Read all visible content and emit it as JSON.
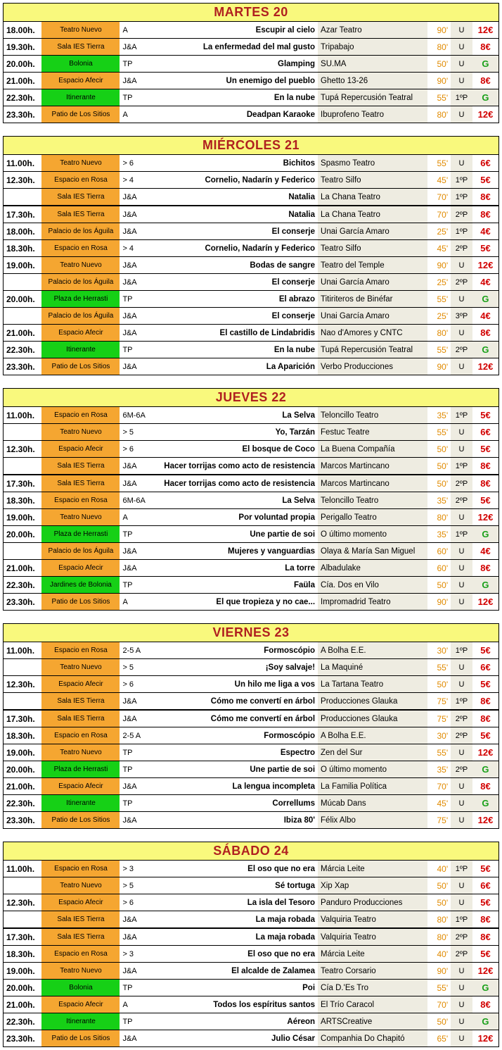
{
  "days": [
    {
      "title": "MARTES 20",
      "groups": [
        [
          {
            "time": "18.00h.",
            "venue": "Teatro Nuevo",
            "vcolor": "orange",
            "age": "A",
            "show": "Escupir al cielo",
            "company": "Azar Teatro",
            "dur": "90'",
            "sess": "U",
            "price": "12€",
            "pcolor": "red"
          },
          {
            "time": "19.30h.",
            "venue": "Sala IES Tierra",
            "vcolor": "orange",
            "age": "J&A",
            "show": "La enfermedad del mal gusto",
            "company": "Tripabajo",
            "dur": "80'",
            "sess": "U",
            "price": "8€",
            "pcolor": "red"
          },
          {
            "time": "20.00h.",
            "venue": "Bolonia",
            "vcolor": "green",
            "age": "TP",
            "show": "Glamping",
            "company": "SU.MA",
            "dur": "50'",
            "sess": "U",
            "price": "G",
            "pcolor": "green"
          },
          {
            "time": "21.00h.",
            "venue": "Espacio Afecir",
            "vcolor": "orange",
            "age": "J&A",
            "show": "Un enemigo del pueblo",
            "company": "Ghetto 13-26",
            "dur": "90'",
            "sess": "U",
            "price": "8€",
            "pcolor": "red"
          },
          {
            "time": "22.30h.",
            "venue": "Itinerante",
            "vcolor": "green",
            "age": "TP",
            "show": "En la nube",
            "company": "Tupá Repercusión Teatral",
            "dur": "55'",
            "sess": "1ºP",
            "price": "G",
            "pcolor": "green"
          },
          {
            "time": "23.30h.",
            "venue": "Patio de Los Sitios",
            "vcolor": "orange",
            "age": "A",
            "show": "Deadpan Karaoke",
            "company": "Ibuprofeno Teatro",
            "dur": "80'",
            "sess": "U",
            "price": "12€",
            "pcolor": "red"
          }
        ]
      ]
    },
    {
      "title": "MIÉRCOLES 21",
      "groups": [
        [
          {
            "time": "11.00h.",
            "venue": "Teatro Nuevo",
            "vcolor": "orange",
            "age": "> 6",
            "show": "Bichitos",
            "company": "Spasmo Teatro",
            "dur": "55'",
            "sess": "U",
            "price": "6€",
            "pcolor": "red"
          },
          {
            "time": "12.30h.",
            "venue": "Espacio en Rosa",
            "vcolor": "orange",
            "age": "> 4",
            "show": "Cornelio, Nadarín y Federico",
            "company": "Teatro Silfo",
            "dur": "45'",
            "sess": "1ºP",
            "price": "5€",
            "pcolor": "red"
          },
          {
            "time": "",
            "venue": "Sala IES Tierra",
            "vcolor": "orange",
            "age": "J&A",
            "show": "Natalia",
            "company": "La Chana Teatro",
            "dur": "70'",
            "sess": "1ºP",
            "price": "8€",
            "pcolor": "red"
          }
        ],
        [
          {
            "time": "17.30h.",
            "venue": "Sala IES Tierra",
            "vcolor": "orange",
            "age": "J&A",
            "show": "Natalia",
            "company": "La Chana Teatro",
            "dur": "70'",
            "sess": "2ºP",
            "price": "8€",
            "pcolor": "red"
          },
          {
            "time": "18.00h.",
            "venue": "Palacio de los Águila",
            "vcolor": "orange",
            "age": "J&A",
            "show": "El conserje",
            "company": "Unai García Amaro",
            "dur": "25'",
            "sess": "1ºP",
            "price": "4€",
            "pcolor": "red"
          },
          {
            "time": "18.30h.",
            "venue": "Espacio en Rosa",
            "vcolor": "orange",
            "age": "> 4",
            "show": "Cornelio, Nadarín y Federico",
            "company": "Teatro Silfo",
            "dur": "45'",
            "sess": "2ºP",
            "price": "5€",
            "pcolor": "red"
          },
          {
            "time": "19.00h.",
            "venue": "Teatro Nuevo",
            "vcolor": "orange",
            "age": "J&A",
            "show": "Bodas de sangre",
            "company": "Teatro del Temple",
            "dur": "90'",
            "sess": "U",
            "price": "12€",
            "pcolor": "red"
          },
          {
            "time": "",
            "venue": "Palacio de los Águila",
            "vcolor": "orange",
            "age": "J&A",
            "show": "El conserje",
            "company": "Unai García Amaro",
            "dur": "25'",
            "sess": "2ºP",
            "price": "4€",
            "pcolor": "red"
          },
          {
            "time": "20.00h.",
            "venue": "Plaza de Herrasti",
            "vcolor": "green",
            "age": "TP",
            "show": "El abrazo",
            "company": "Titiriteros de Binéfar",
            "dur": "55'",
            "sess": "U",
            "price": "G",
            "pcolor": "green"
          },
          {
            "time": "",
            "venue": "Palacio de los Águila",
            "vcolor": "orange",
            "age": "J&A",
            "show": "El conserje",
            "company": "Unai García Amaro",
            "dur": "25'",
            "sess": "3ºP",
            "price": "4€",
            "pcolor": "red"
          },
          {
            "time": "21.00h.",
            "venue": "Espacio Afecir",
            "vcolor": "orange",
            "age": "J&A",
            "show": "El castillo de Lindabridis",
            "company": "Nao d'Amores y CNTC",
            "dur": "80'",
            "sess": "U",
            "price": "8€",
            "pcolor": "red"
          },
          {
            "time": "22.30h.",
            "venue": "Itinerante",
            "vcolor": "green",
            "age": "TP",
            "show": "En la nube",
            "company": "Tupá Repercusión Teatral",
            "dur": "55'",
            "sess": "2ºP",
            "price": "G",
            "pcolor": "green"
          },
          {
            "time": "23.30h.",
            "venue": "Patio de Los Sitios",
            "vcolor": "orange",
            "age": "J&A",
            "show": "La Aparición",
            "company": "Verbo Producciones",
            "dur": "90'",
            "sess": "U",
            "price": "12€",
            "pcolor": "red"
          }
        ]
      ]
    },
    {
      "title": "JUEVES 22",
      "groups": [
        [
          {
            "time": "11.00h.",
            "venue": "Espacio en Rosa",
            "vcolor": "orange",
            "age": "6M-6A",
            "show": "La Selva",
            "company": "Teloncillo Teatro",
            "dur": "35'",
            "sess": "1ºP",
            "price": "5€",
            "pcolor": "red"
          },
          {
            "time": "",
            "venue": "Teatro Nuevo",
            "vcolor": "orange",
            "age": "> 5",
            "show": "Yo, Tarzán",
            "company": "Festuc Teatre",
            "dur": "55'",
            "sess": "U",
            "price": "6€",
            "pcolor": "red"
          },
          {
            "time": "12.30h.",
            "venue": "Espacio Afecir",
            "vcolor": "orange",
            "age": "> 6",
            "show": "El bosque de Coco",
            "company": "La Buena Compañía",
            "dur": "50'",
            "sess": "U",
            "price": "5€",
            "pcolor": "red"
          },
          {
            "time": "",
            "venue": "Sala IES Tierra",
            "vcolor": "orange",
            "age": "J&A",
            "show": "Hacer torrijas como acto de resistencia",
            "company": "Marcos Martincano",
            "dur": "50'",
            "sess": "1ºP",
            "price": "8€",
            "pcolor": "red"
          }
        ],
        [
          {
            "time": "17.30h.",
            "venue": "Sala IES Tierra",
            "vcolor": "orange",
            "age": "J&A",
            "show": "Hacer torrijas como acto de resistencia",
            "company": "Marcos Martincano",
            "dur": "50'",
            "sess": "2ºP",
            "price": "8€",
            "pcolor": "red"
          },
          {
            "time": "18.30h.",
            "venue": "Espacio en Rosa",
            "vcolor": "orange",
            "age": "6M-6A",
            "show": "La Selva",
            "company": "Teloncillo Teatro",
            "dur": "35'",
            "sess": "2ºP",
            "price": "5€",
            "pcolor": "red"
          },
          {
            "time": "19.00h.",
            "venue": "Teatro Nuevo",
            "vcolor": "orange",
            "age": "A",
            "show": "Por voluntad propia",
            "company": "Perigallo Teatro",
            "dur": "80'",
            "sess": "U",
            "price": "12€",
            "pcolor": "red"
          },
          {
            "time": "20.00h.",
            "venue": "Plaza de Herrasti",
            "vcolor": "green",
            "age": "TP",
            "show": "Une partie de soi",
            "company": "O último momento",
            "dur": "35'",
            "sess": "1ºP",
            "price": "G",
            "pcolor": "green"
          },
          {
            "time": "",
            "venue": "Palacio de los Águila",
            "vcolor": "orange",
            "age": "J&A",
            "show": "Mujeres y vanguardias",
            "company": "Olaya & María San Miguel",
            "dur": "60'",
            "sess": "U",
            "price": "4€",
            "pcolor": "red"
          },
          {
            "time": "21.00h.",
            "venue": "Espacio Afecir",
            "vcolor": "orange",
            "age": "J&A",
            "show": "La torre",
            "company": "Albadulake",
            "dur": "60'",
            "sess": "U",
            "price": "8€",
            "pcolor": "red"
          },
          {
            "time": "22.30h.",
            "venue": "Jardines de Bolonia",
            "vcolor": "green",
            "age": "TP",
            "show": "Faüla",
            "company": "Cía. Dos en Vilo",
            "dur": "50'",
            "sess": "U",
            "price": "G",
            "pcolor": "green"
          },
          {
            "time": "23.30h.",
            "venue": "Patio de Los Sitios",
            "vcolor": "orange",
            "age": "A",
            "show": "El que tropieza y no cae...",
            "company": "Impromadrid Teatro",
            "dur": "90'",
            "sess": "U",
            "price": "12€",
            "pcolor": "red"
          }
        ]
      ]
    },
    {
      "title": "VIERNES 23",
      "groups": [
        [
          {
            "time": "11.00h.",
            "venue": "Espacio en Rosa",
            "vcolor": "orange",
            "age": "2-5 A",
            "show": "Formoscópio",
            "company": "A Bolha E.E.",
            "dur": "30'",
            "sess": "1ºP",
            "price": "5€",
            "pcolor": "red"
          },
          {
            "time": "",
            "venue": "Teatro Nuevo",
            "vcolor": "orange",
            "age": "> 5",
            "show": "¡Soy salvaje!",
            "company": "La Maquiné",
            "dur": "55'",
            "sess": "U",
            "price": "6€",
            "pcolor": "red"
          },
          {
            "time": "12.30h.",
            "venue": "Espacio Afecir",
            "vcolor": "orange",
            "age": "> 6",
            "show": "Un hilo me liga a vos",
            "company": "La Tartana Teatro",
            "dur": "50'",
            "sess": "U",
            "price": "5€",
            "pcolor": "red"
          },
          {
            "time": "",
            "venue": "Sala IES Tierra",
            "vcolor": "orange",
            "age": "J&A",
            "show": "Cómo me convertí en árbol",
            "company": "Producciones Glauka",
            "dur": "75'",
            "sess": "1ºP",
            "price": "8€",
            "pcolor": "red"
          }
        ],
        [
          {
            "time": "17.30h.",
            "venue": "Sala IES Tierra",
            "vcolor": "orange",
            "age": "J&A",
            "show": "Cómo me convertí en árbol",
            "company": "Producciones Glauka",
            "dur": "75'",
            "sess": "2ºP",
            "price": "8€",
            "pcolor": "red"
          },
          {
            "time": "18.30h.",
            "venue": "Espacio en Rosa",
            "vcolor": "orange",
            "age": "2-5 A",
            "show": "Formoscópio",
            "company": "A Bolha E.E.",
            "dur": "30'",
            "sess": "2ºP",
            "price": "5€",
            "pcolor": "red"
          },
          {
            "time": "19.00h.",
            "venue": "Teatro Nuevo",
            "vcolor": "orange",
            "age": "TP",
            "show": "Espectro",
            "company": "Zen del Sur",
            "dur": "55'",
            "sess": "U",
            "price": "12€",
            "pcolor": "red"
          },
          {
            "time": "20.00h.",
            "venue": "Plaza de Herrasti",
            "vcolor": "green",
            "age": "TP",
            "show": "Une partie de soi",
            "company": "O último momento",
            "dur": "35'",
            "sess": "2ºP",
            "price": "G",
            "pcolor": "green"
          },
          {
            "time": "21.00h.",
            "venue": "Espacio Afecir",
            "vcolor": "orange",
            "age": "J&A",
            "show": "La lengua incompleta",
            "company": "La Familia Política",
            "dur": "70'",
            "sess": "U",
            "price": "8€",
            "pcolor": "red"
          },
          {
            "time": "22.30h.",
            "venue": "Itinerante",
            "vcolor": "green",
            "age": "TP",
            "show": "Correllums",
            "company": "Múcab Dans",
            "dur": "45'",
            "sess": "U",
            "price": "G",
            "pcolor": "green"
          },
          {
            "time": "23.30h.",
            "venue": "Patio de Los Sitios",
            "vcolor": "orange",
            "age": "J&A",
            "show": "Ibiza 80'",
            "company": "Félix Albo",
            "dur": "75'",
            "sess": "U",
            "price": "12€",
            "pcolor": "red"
          }
        ]
      ]
    },
    {
      "title": "SÁBADO 24",
      "groups": [
        [
          {
            "time": "11.00h.",
            "venue": "Espacio en Rosa",
            "vcolor": "orange",
            "age": "> 3",
            "show": "El oso que no era",
            "company": "Márcia Leite",
            "dur": "40'",
            "sess": "1ºP",
            "price": "5€",
            "pcolor": "red"
          },
          {
            "time": "",
            "venue": "Teatro Nuevo",
            "vcolor": "orange",
            "age": "> 5",
            "show": "Sé tortuga",
            "company": "Xip Xap",
            "dur": "50'",
            "sess": "U",
            "price": "6€",
            "pcolor": "red"
          },
          {
            "time": "12.30h.",
            "venue": "Espacio Afecir",
            "vcolor": "orange",
            "age": "> 6",
            "show": "La isla del Tesoro",
            "company": "Panduro Producciones",
            "dur": "50'",
            "sess": "U",
            "price": "5€",
            "pcolor": "red"
          },
          {
            "time": "",
            "venue": "Sala IES Tierra",
            "vcolor": "orange",
            "age": "J&A",
            "show": "La maja robada",
            "company": "Valquiria Teatro",
            "dur": "80'",
            "sess": "1ºP",
            "price": "8€",
            "pcolor": "red"
          }
        ],
        [
          {
            "time": "17.30h.",
            "venue": "Sala IES Tierra",
            "vcolor": "orange",
            "age": "J&A",
            "show": "La maja robada",
            "company": "Valquiria Teatro",
            "dur": "80'",
            "sess": "2ºP",
            "price": "8€",
            "pcolor": "red"
          },
          {
            "time": "18.30h.",
            "venue": "Espacio en Rosa",
            "vcolor": "orange",
            "age": "> 3",
            "show": "El oso que no era",
            "company": "Márcia Leite",
            "dur": "40'",
            "sess": "2ºP",
            "price": "5€",
            "pcolor": "red"
          },
          {
            "time": "19.00h.",
            "venue": "Teatro Nuevo",
            "vcolor": "orange",
            "age": "J&A",
            "show": "El alcalde de Zalamea",
            "company": "Teatro Corsario",
            "dur": "90'",
            "sess": "U",
            "price": "12€",
            "pcolor": "red"
          },
          {
            "time": "20.00h.",
            "venue": "Bolonia",
            "vcolor": "green",
            "age": "TP",
            "show": "Poi",
            "company": "Cía D.'Es Tro",
            "dur": "55'",
            "sess": "U",
            "price": "G",
            "pcolor": "green"
          },
          {
            "time": "21.00h.",
            "venue": "Espacio Afecir",
            "vcolor": "orange",
            "age": "A",
            "show": "Todos los espíritus santos",
            "company": "El Trío Caracol",
            "dur": "70'",
            "sess": "U",
            "price": "8€",
            "pcolor": "red"
          },
          {
            "time": "22.30h.",
            "venue": "Itinerante",
            "vcolor": "green",
            "age": "TP",
            "show": "Aéreon",
            "company": "ARTSCreative",
            "dur": "50'",
            "sess": "U",
            "price": "G",
            "pcolor": "green"
          },
          {
            "time": "23.30h.",
            "venue": "Patio de Los Sitios",
            "vcolor": "orange",
            "age": "J&A",
            "show": "Julio César",
            "company": "Companhia Do Chapitó",
            "dur": "65'",
            "sess": "U",
            "price": "12€",
            "pcolor": "red"
          }
        ]
      ]
    }
  ]
}
